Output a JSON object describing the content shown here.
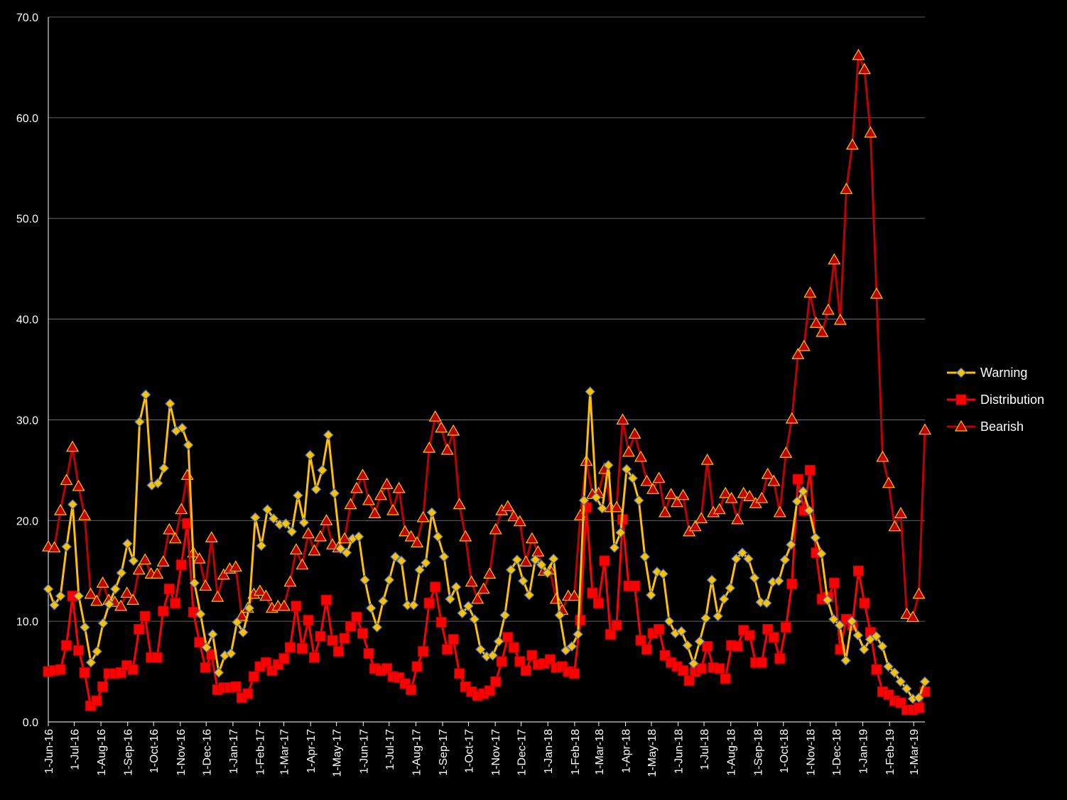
{
  "chart_data": {
    "type": "line",
    "title": "",
    "xlabel": "",
    "ylabel": "",
    "ylim": [
      0,
      70
    ],
    "yticks": [
      "0.0",
      "10.0",
      "20.0",
      "30.0",
      "40.0",
      "50.0",
      "60.0",
      "70.0"
    ],
    "xticks": [
      "1-Jun-16",
      "1-Jul-16",
      "1-Aug-16",
      "1-Sep-16",
      "1-Oct-16",
      "1-Nov-16",
      "1-Dec-16",
      "1-Jan-17",
      "1-Feb-17",
      "1-Mar-17",
      "1-Apr-17",
      "1-May-17",
      "1-Jun-17",
      "1-Jul-17",
      "1-Aug-17",
      "1-Sep-17",
      "1-Oct-17",
      "1-Nov-17",
      "1-Dec-17",
      "1-Jan-18",
      "1-Feb-18",
      "1-Mar-18",
      "1-Apr-18",
      "1-May-18",
      "1-Jun-18",
      "1-Jul-18",
      "1-Aug-18",
      "1-Sep-18",
      "1-Oct-18",
      "1-Nov-18",
      "1-Dec-18",
      "1-Jan-19",
      "1-Feb-19",
      "1-Mar-19"
    ],
    "x_start": "2016-06-01",
    "x_end": "2019-03-14",
    "grid": "horizontal",
    "legend": "right",
    "series": [
      {
        "name": "Warning",
        "color": "#FFC000",
        "marker": "diamond",
        "values": [
          13.2,
          11.6,
          12.5,
          17.4,
          21.6,
          12.5,
          9.4,
          5.9,
          7.0,
          9.8,
          11.7,
          13.2,
          14.8,
          17.7,
          16.0,
          29.8,
          32.5,
          23.5,
          23.7,
          25.2,
          31.6,
          28.9,
          29.2,
          27.5,
          13.8,
          10.7,
          7.4,
          8.7,
          4.9,
          6.6,
          6.8,
          9.9,
          8.9,
          11.3,
          20.3,
          17.5,
          21.1,
          20.2,
          19.6,
          19.7,
          18.9,
          22.5,
          19.8,
          26.5,
          23.1,
          25.0,
          28.5,
          22.7,
          17.2,
          16.8,
          18.2,
          18.4,
          14.1,
          11.3,
          9.4,
          12.0,
          14.1,
          16.4,
          16.0,
          11.6,
          11.6,
          15.1,
          15.8,
          20.8,
          18.4,
          16.4,
          12.2,
          13.4,
          10.8,
          11.5,
          10.2,
          7.2,
          6.5,
          6.6,
          8.0,
          10.6,
          15.1,
          16.1,
          14.0,
          12.6,
          16.1,
          15.6,
          14.8,
          16.2,
          10.6,
          7.1,
          7.5,
          8.7,
          22.0,
          32.8,
          22.3,
          21.2,
          25.5,
          17.3,
          18.8,
          25.1,
          24.2,
          22.0,
          16.4,
          12.6,
          14.9,
          14.7,
          10.0,
          8.8,
          9.0,
          7.6,
          5.8,
          8.0,
          10.3,
          14.1,
          10.5,
          12.2,
          13.3,
          16.2,
          16.8,
          16.2,
          14.3,
          11.9,
          11.8,
          13.9,
          14.0,
          16.1,
          17.6,
          21.9,
          22.9,
          21.0,
          18.3,
          16.7,
          12.1,
          10.2,
          9.6,
          6.1,
          10.0,
          8.6,
          7.2,
          8.2,
          8.5,
          7.5,
          5.5,
          4.9,
          4.0,
          3.3,
          2.3,
          2.4,
          4.0
        ]
      },
      {
        "name": "Distribution",
        "color": "#FF0000",
        "marker": "square",
        "values": [
          5.0,
          5.1,
          5.2,
          7.6,
          12.5,
          7.1,
          4.9,
          1.6,
          2.1,
          3.5,
          4.8,
          4.8,
          4.9,
          5.6,
          5.2,
          9.2,
          10.5,
          6.4,
          6.4,
          11.0,
          13.2,
          11.8,
          15.6,
          19.7,
          10.9,
          7.9,
          5.4,
          6.7,
          3.2,
          3.4,
          3.4,
          3.5,
          2.4,
          2.8,
          4.5,
          5.5,
          5.9,
          5.1,
          5.7,
          6.3,
          7.4,
          11.5,
          7.3,
          10.1,
          6.4,
          8.5,
          12.1,
          8.1,
          7.0,
          8.3,
          9.5,
          10.4,
          8.8,
          6.8,
          5.3,
          5.1,
          5.3,
          4.5,
          4.4,
          3.8,
          3.2,
          5.5,
          7.0,
          11.8,
          13.4,
          9.9,
          7.2,
          8.2,
          4.8,
          3.5,
          3.0,
          2.6,
          2.8,
          3.1,
          4.0,
          6.0,
          8.4,
          7.4,
          6.0,
          5.1,
          6.6,
          5.7,
          5.8,
          6.2,
          5.4,
          5.5,
          5.0,
          4.8,
          10.1,
          21.3,
          12.8,
          11.8,
          16.0,
          8.7,
          9.6,
          20.1,
          13.5,
          13.5,
          8.1,
          7.2,
          8.8,
          9.2,
          6.6,
          5.9,
          5.5,
          5.1,
          4.1,
          5.0,
          5.3,
          7.5,
          5.4,
          5.3,
          4.3,
          7.6,
          7.5,
          9.1,
          8.6,
          5.9,
          5.9,
          9.2,
          8.4,
          6.3,
          9.4,
          13.7,
          24.1,
          21.0,
          25.0,
          16.8,
          12.2,
          12.4,
          13.8,
          7.2,
          10.2,
          9.6,
          15.0,
          11.8,
          8.9,
          5.2,
          3.0,
          2.7,
          2.1,
          1.9,
          1.2,
          1.2,
          1.4,
          3.0
        ]
      },
      {
        "name": "Bearish",
        "color": "#C00000",
        "marker": "triangle",
        "values": [
          17.4,
          17.3,
          21.0,
          24.0,
          27.3,
          23.4,
          20.5,
          12.7,
          12.0,
          13.8,
          12.1,
          11.9,
          11.5,
          12.8,
          12.1,
          15.1,
          16.1,
          14.7,
          14.7,
          15.9,
          19.1,
          18.2,
          21.1,
          24.5,
          16.8,
          16.2,
          13.5,
          18.3,
          12.4,
          14.6,
          15.2,
          15.4,
          10.5,
          11.3,
          12.7,
          13.0,
          12.5,
          11.3,
          11.5,
          11.5,
          13.9,
          17.1,
          15.6,
          18.7,
          17.0,
          18.4,
          20.0,
          17.6,
          17.3,
          18.2,
          21.6,
          23.2,
          24.5,
          22.0,
          20.7,
          22.5,
          23.6,
          21.0,
          23.2,
          18.9,
          18.4,
          17.8,
          20.3,
          27.2,
          30.3,
          29.2,
          27.0,
          28.9,
          21.6,
          18.4,
          13.9,
          12.2,
          13.2,
          14.7,
          19.1,
          21.0,
          21.4,
          20.4,
          19.9,
          15.9,
          18.2,
          16.9,
          15.0,
          15.1,
          12.2,
          11.1,
          12.5,
          12.5,
          20.5,
          25.9,
          22.6,
          22.7,
          25.1,
          21.3,
          21.3,
          30.0,
          26.8,
          28.6,
          26.3,
          23.9,
          23.1,
          24.2,
          20.8,
          22.6,
          21.8,
          22.5,
          18.9,
          19.4,
          20.2,
          26.0,
          20.8,
          21.1,
          22.7,
          22.2,
          20.1,
          22.7,
          22.4,
          21.7,
          22.2,
          24.6,
          23.9,
          20.8,
          26.7,
          30.1,
          36.5,
          37.3,
          42.6,
          39.6,
          38.7,
          40.9,
          45.9,
          39.9,
          52.9,
          57.3,
          66.2,
          64.8,
          58.5,
          42.5,
          26.3,
          23.7,
          19.4,
          20.7,
          10.7,
          10.4,
          12.7,
          29.0
        ]
      }
    ]
  }
}
